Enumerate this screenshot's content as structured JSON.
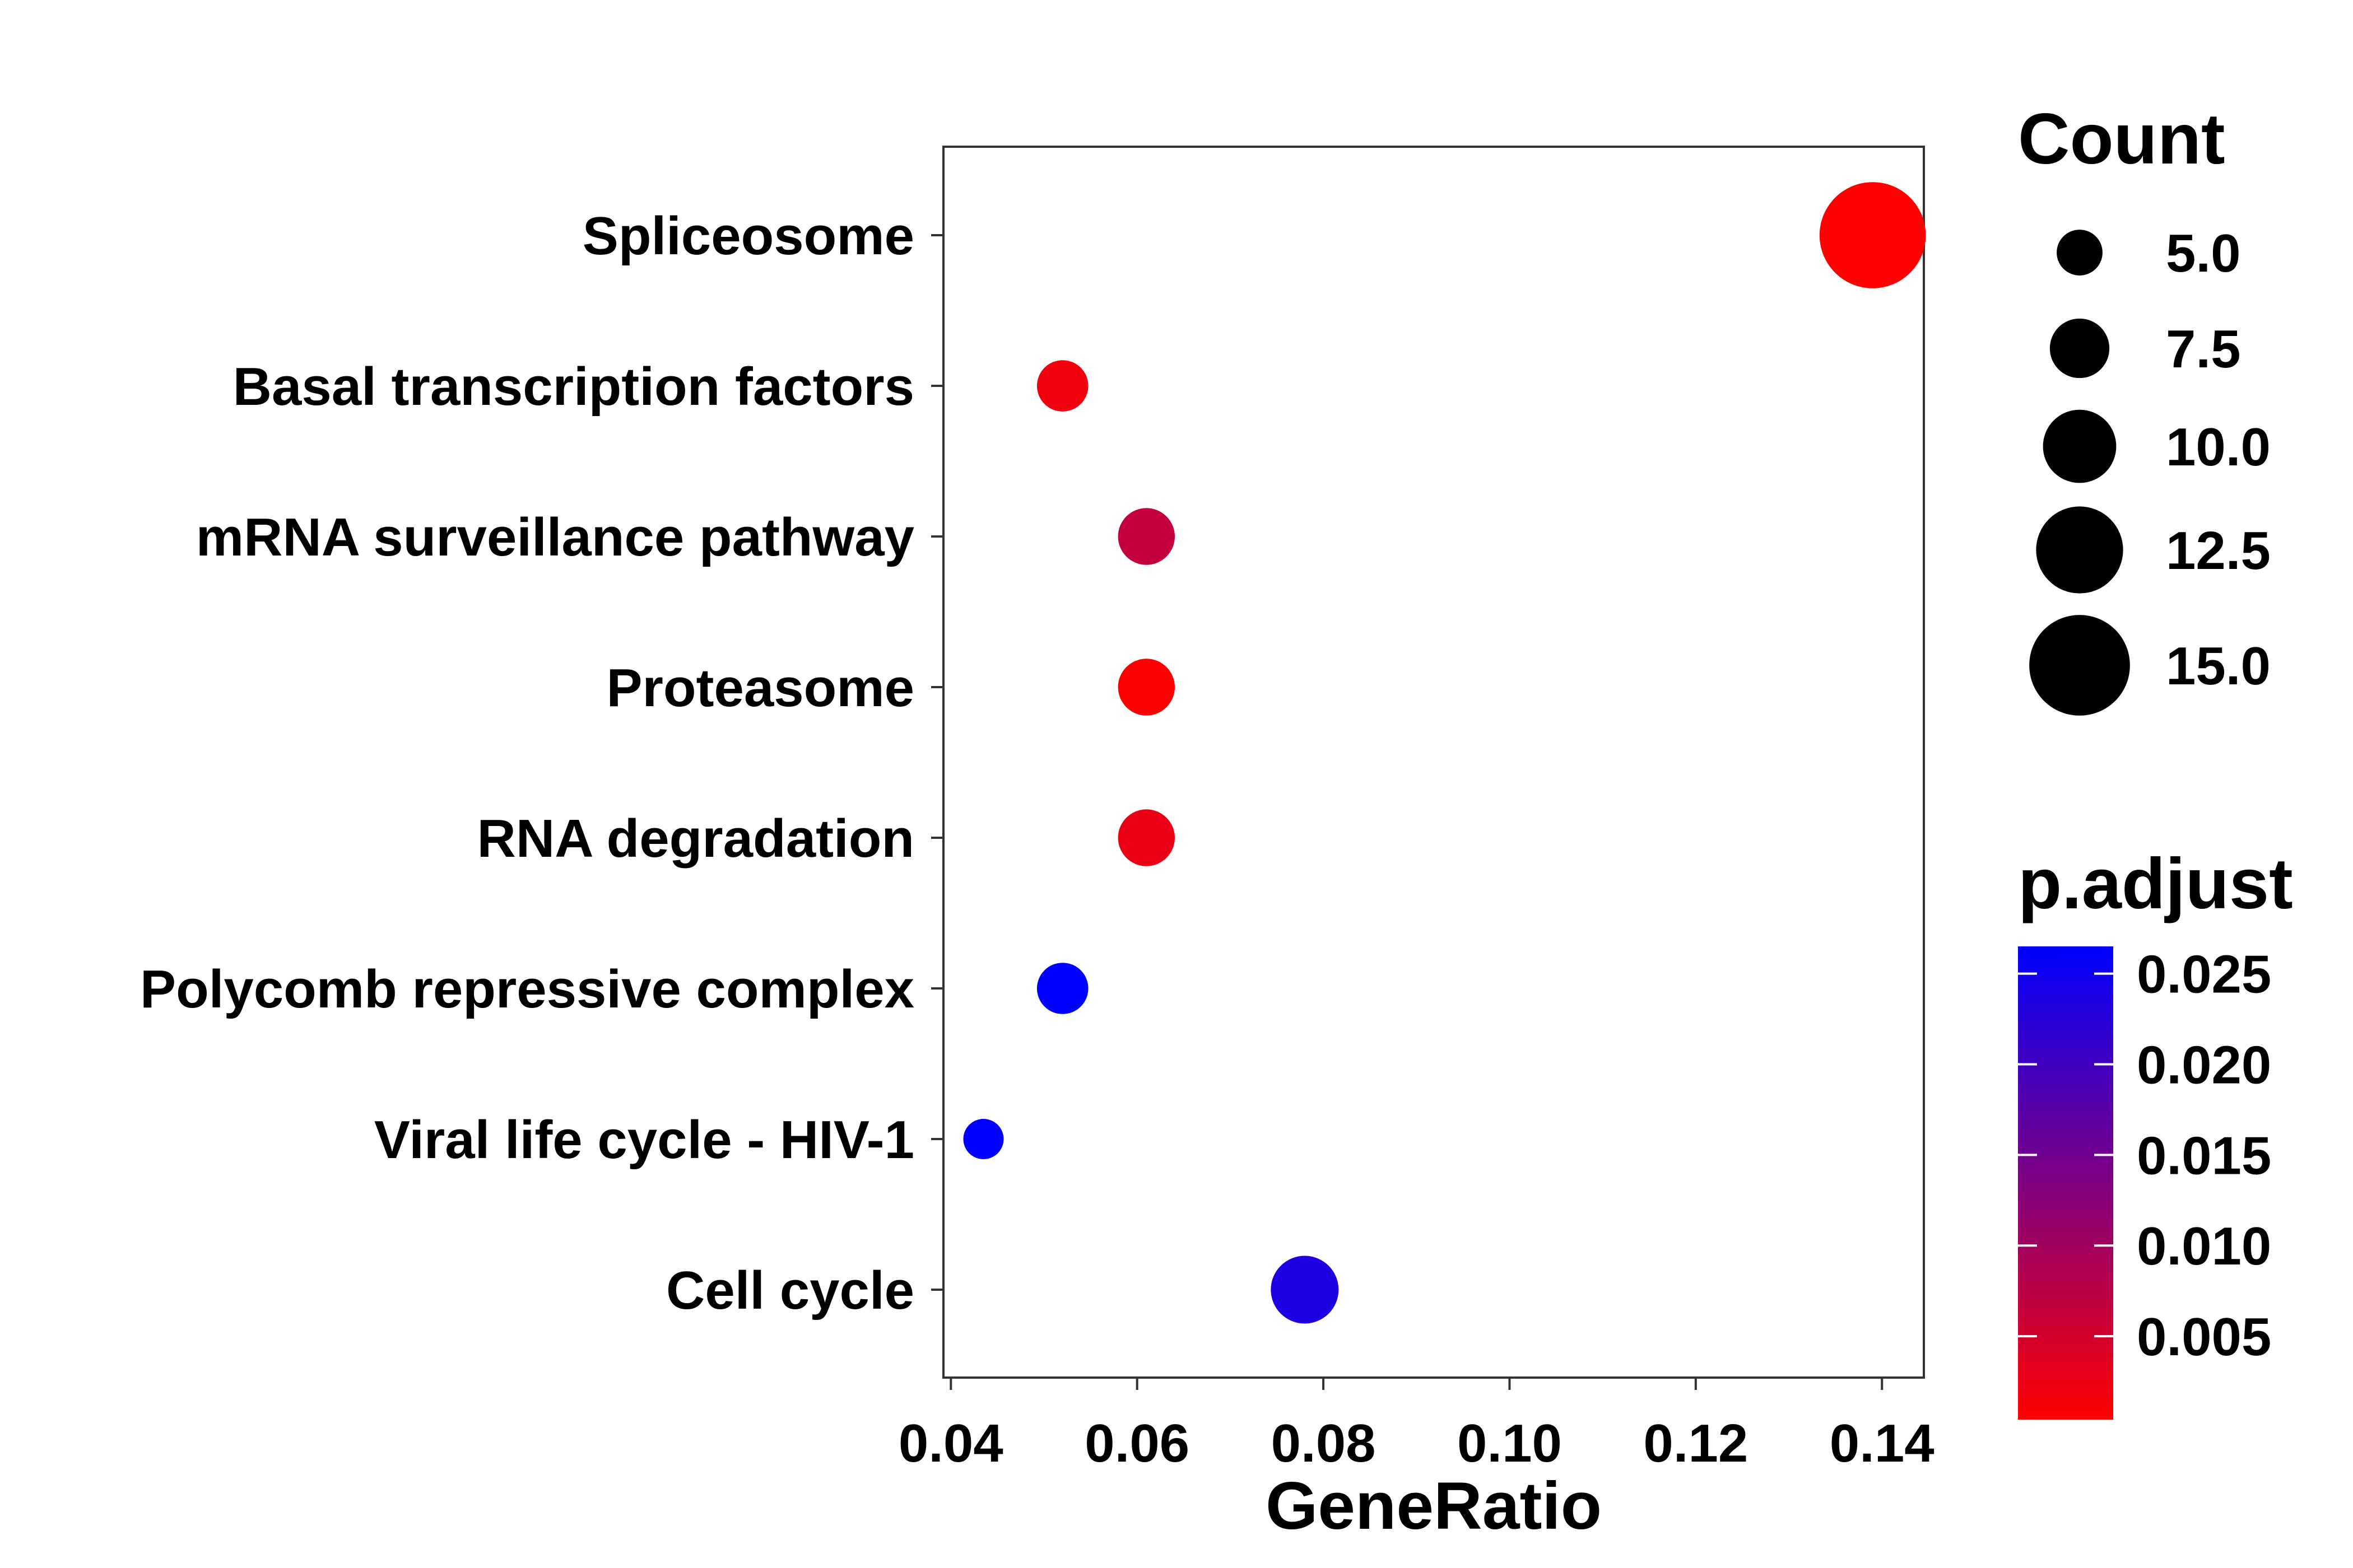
{
  "chart_data": {
    "type": "scatter",
    "xlabel": "GeneRatio",
    "ylabel": "",
    "xlim": [
      0.0392,
      0.1445
    ],
    "x_ticks": [
      0.04,
      0.06,
      0.08,
      0.1,
      0.12,
      0.14
    ],
    "x_tick_labels": [
      "0.04",
      "0.06",
      "0.08",
      "0.10",
      "0.12",
      "0.14"
    ],
    "categories": [
      "Spliceosome",
      "Basal transcription factors",
      "mRNA surveillance pathway",
      "Proteasome",
      "RNA degradation",
      "Polycomb repressive complex",
      "Viral life cycle - HIV-1",
      "Cell cycle"
    ],
    "points": [
      {
        "category": "Spliceosome",
        "gene_ratio": 0.139,
        "count": 16,
        "p_adjust": 0.0004
      },
      {
        "category": "Basal transcription factors",
        "gene_ratio": 0.052,
        "count": 6,
        "p_adjust": 0.0018
      },
      {
        "category": "mRNA surveillance pathway",
        "gene_ratio": 0.061,
        "count": 7,
        "p_adjust": 0.0065
      },
      {
        "category": "Proteasome",
        "gene_ratio": 0.061,
        "count": 7,
        "p_adjust": 0.0006
      },
      {
        "category": "RNA degradation",
        "gene_ratio": 0.061,
        "count": 7,
        "p_adjust": 0.0025
      },
      {
        "category": "Polycomb repressive complex",
        "gene_ratio": 0.052,
        "count": 6,
        "p_adjust": 0.0265
      },
      {
        "category": "Viral life cycle - HIV-1",
        "gene_ratio": 0.0435,
        "count": 4,
        "p_adjust": 0.0265
      },
      {
        "category": "Cell cycle",
        "gene_ratio": 0.078,
        "count": 9,
        "p_adjust": 0.0235
      }
    ],
    "size_legend": {
      "title": "Count",
      "values": [
        5.0,
        7.5,
        10.0,
        12.5,
        15.0
      ],
      "labels": [
        "5.0",
        "7.5",
        "10.0",
        "12.5",
        "15.0"
      ]
    },
    "color_legend": {
      "title": "p.adjust",
      "range": [
        0.0004,
        0.0265
      ],
      "ticks": [
        0.005,
        0.01,
        0.015,
        0.02,
        0.025
      ],
      "tick_labels": [
        "0.005",
        "0.010",
        "0.015",
        "0.020",
        "0.025"
      ],
      "low_color": "#ff0000",
      "high_color": "#0000ff"
    },
    "grid": false,
    "legend_placement": "right"
  }
}
